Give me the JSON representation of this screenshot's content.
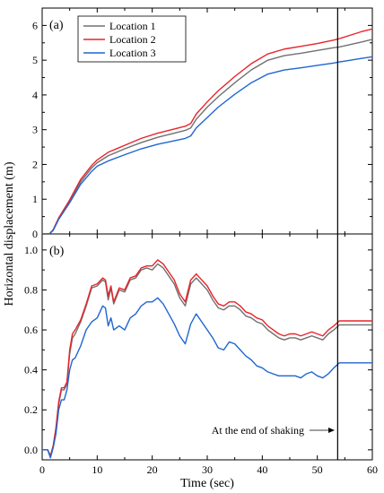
{
  "chart_data": [
    {
      "panel_label": "(a)",
      "type": "line",
      "ylim": [
        0,
        6.5
      ],
      "yticks": [
        "0",
        "1",
        "2",
        "3",
        "4",
        "5",
        "6"
      ],
      "series": [
        {
          "name": "Location 1",
          "color": "#707070",
          "points": [
            [
              0,
              0
            ],
            [
              1.3,
              0
            ],
            [
              2,
              0.12
            ],
            [
              3,
              0.45
            ],
            [
              5,
              0.95
            ],
            [
              7,
              1.5
            ],
            [
              9,
              1.9
            ],
            [
              10,
              2.05
            ],
            [
              12,
              2.25
            ],
            [
              15,
              2.45
            ],
            [
              18,
              2.63
            ],
            [
              21,
              2.78
            ],
            [
              24,
              2.9
            ],
            [
              26,
              2.98
            ],
            [
              27,
              3.05
            ],
            [
              28,
              3.3
            ],
            [
              30,
              3.65
            ],
            [
              32,
              3.95
            ],
            [
              35,
              4.35
            ],
            [
              38,
              4.72
            ],
            [
              41,
              5.0
            ],
            [
              44,
              5.13
            ],
            [
              47,
              5.2
            ],
            [
              50,
              5.28
            ],
            [
              53,
              5.36
            ],
            [
              54,
              5.38
            ],
            [
              56,
              5.45
            ],
            [
              58,
              5.52
            ],
            [
              60,
              5.6
            ]
          ]
        },
        {
          "name": "Location 2",
          "color": "#e8232a",
          "points": [
            [
              0,
              0
            ],
            [
              1.3,
              0
            ],
            [
              2,
              0.12
            ],
            [
              3,
              0.46
            ],
            [
              5,
              0.98
            ],
            [
              7,
              1.57
            ],
            [
              9,
              1.97
            ],
            [
              10,
              2.13
            ],
            [
              12,
              2.35
            ],
            [
              15,
              2.55
            ],
            [
              18,
              2.75
            ],
            [
              21,
              2.9
            ],
            [
              24,
              3.02
            ],
            [
              26,
              3.1
            ],
            [
              27,
              3.18
            ],
            [
              28,
              3.45
            ],
            [
              30,
              3.8
            ],
            [
              32,
              4.12
            ],
            [
              35,
              4.53
            ],
            [
              38,
              4.9
            ],
            [
              41,
              5.18
            ],
            [
              44,
              5.32
            ],
            [
              47,
              5.4
            ],
            [
              50,
              5.48
            ],
            [
              53,
              5.58
            ],
            [
              54,
              5.62
            ],
            [
              56,
              5.72
            ],
            [
              58,
              5.82
            ],
            [
              60,
              5.9
            ]
          ]
        },
        {
          "name": "Location 3",
          "color": "#1f66d1",
          "points": [
            [
              0,
              0
            ],
            [
              1.3,
              0
            ],
            [
              2,
              0.1
            ],
            [
              3,
              0.42
            ],
            [
              5,
              0.9
            ],
            [
              7,
              1.43
            ],
            [
              9,
              1.8
            ],
            [
              10,
              1.95
            ],
            [
              12,
              2.1
            ],
            [
              15,
              2.28
            ],
            [
              18,
              2.45
            ],
            [
              21,
              2.58
            ],
            [
              24,
              2.68
            ],
            [
              26,
              2.75
            ],
            [
              27,
              2.82
            ],
            [
              28,
              3.05
            ],
            [
              30,
              3.35
            ],
            [
              32,
              3.65
            ],
            [
              35,
              4.02
            ],
            [
              38,
              4.35
            ],
            [
              41,
              4.6
            ],
            [
              44,
              4.72
            ],
            [
              47,
              4.78
            ],
            [
              50,
              4.85
            ],
            [
              53,
              4.92
            ],
            [
              54,
              4.95
            ],
            [
              56,
              5.0
            ],
            [
              58,
              5.05
            ],
            [
              60,
              5.1
            ]
          ]
        }
      ]
    },
    {
      "panel_label": "(b)",
      "type": "line",
      "ylim": [
        -0.05,
        1.08
      ],
      "yticks": [
        "0.0",
        "0.2",
        "0.4",
        "0.6",
        "0.8",
        "1.0"
      ],
      "series": [
        {
          "name": "Location 1",
          "color": "#707070",
          "points": [
            [
              0,
              0
            ],
            [
              1,
              0
            ],
            [
              1.5,
              -0.03
            ],
            [
              2,
              0.02
            ],
            [
              2.5,
              0.1
            ],
            [
              3,
              0.23
            ],
            [
              3.5,
              0.3
            ],
            [
              4,
              0.3
            ],
            [
              4.5,
              0.33
            ],
            [
              5,
              0.48
            ],
            [
              5.5,
              0.56
            ],
            [
              6,
              0.58
            ],
            [
              7,
              0.64
            ],
            [
              8,
              0.72
            ],
            [
              9,
              0.81
            ],
            [
              10,
              0.82
            ],
            [
              11,
              0.85
            ],
            [
              11.5,
              0.84
            ],
            [
              12,
              0.75
            ],
            [
              12.5,
              0.81
            ],
            [
              13,
              0.73
            ],
            [
              14,
              0.8
            ],
            [
              15,
              0.79
            ],
            [
              16,
              0.85
            ],
            [
              17,
              0.86
            ],
            [
              18,
              0.9
            ],
            [
              19,
              0.91
            ],
            [
              20,
              0.9
            ],
            [
              21,
              0.93
            ],
            [
              22,
              0.91
            ],
            [
              23,
              0.87
            ],
            [
              24,
              0.83
            ],
            [
              25,
              0.76
            ],
            [
              26,
              0.72
            ],
            [
              27,
              0.83
            ],
            [
              28,
              0.86
            ],
            [
              29,
              0.83
            ],
            [
              30,
              0.8
            ],
            [
              31,
              0.75
            ],
            [
              32,
              0.71
            ],
            [
              33,
              0.7
            ],
            [
              34,
              0.72
            ],
            [
              35,
              0.72
            ],
            [
              36,
              0.7
            ],
            [
              37,
              0.67
            ],
            [
              38,
              0.66
            ],
            [
              39,
              0.64
            ],
            [
              40,
              0.63
            ],
            [
              41,
              0.6
            ],
            [
              42,
              0.58
            ],
            [
              43,
              0.56
            ],
            [
              44,
              0.55
            ],
            [
              45,
              0.56
            ],
            [
              46,
              0.56
            ],
            [
              47,
              0.55
            ],
            [
              48,
              0.56
            ],
            [
              49,
              0.57
            ],
            [
              50,
              0.56
            ],
            [
              51,
              0.55
            ],
            [
              52,
              0.58
            ],
            [
              53,
              0.6
            ],
            [
              54,
              0.625
            ],
            [
              60,
              0.625
            ]
          ]
        },
        {
          "name": "Location 2",
          "color": "#e8232a",
          "points": [
            [
              0,
              0
            ],
            [
              1,
              0
            ],
            [
              1.5,
              -0.03
            ],
            [
              2,
              0.02
            ],
            [
              2.5,
              0.11
            ],
            [
              3,
              0.24
            ],
            [
              3.5,
              0.31
            ],
            [
              4,
              0.31
            ],
            [
              4.5,
              0.34
            ],
            [
              5,
              0.5
            ],
            [
              5.5,
              0.58
            ],
            [
              6,
              0.6
            ],
            [
              7,
              0.65
            ],
            [
              8,
              0.73
            ],
            [
              9,
              0.82
            ],
            [
              10,
              0.83
            ],
            [
              11,
              0.86
            ],
            [
              11.5,
              0.85
            ],
            [
              12,
              0.77
            ],
            [
              12.5,
              0.82
            ],
            [
              13,
              0.74
            ],
            [
              14,
              0.81
            ],
            [
              15,
              0.8
            ],
            [
              16,
              0.86
            ],
            [
              17,
              0.87
            ],
            [
              18,
              0.91
            ],
            [
              19,
              0.92
            ],
            [
              20,
              0.92
            ],
            [
              21,
              0.95
            ],
            [
              22,
              0.93
            ],
            [
              23,
              0.89
            ],
            [
              24,
              0.85
            ],
            [
              25,
              0.78
            ],
            [
              26,
              0.74
            ],
            [
              27,
              0.85
            ],
            [
              28,
              0.88
            ],
            [
              29,
              0.85
            ],
            [
              30,
              0.82
            ],
            [
              31,
              0.77
            ],
            [
              32,
              0.73
            ],
            [
              33,
              0.72
            ],
            [
              34,
              0.74
            ],
            [
              35,
              0.74
            ],
            [
              36,
              0.72
            ],
            [
              37,
              0.69
            ],
            [
              38,
              0.68
            ],
            [
              39,
              0.66
            ],
            [
              40,
              0.65
            ],
            [
              41,
              0.62
            ],
            [
              42,
              0.6
            ],
            [
              43,
              0.58
            ],
            [
              44,
              0.57
            ],
            [
              45,
              0.58
            ],
            [
              46,
              0.58
            ],
            [
              47,
              0.57
            ],
            [
              48,
              0.58
            ],
            [
              49,
              0.59
            ],
            [
              50,
              0.58
            ],
            [
              51,
              0.57
            ],
            [
              52,
              0.6
            ],
            [
              53,
              0.62
            ],
            [
              54,
              0.645
            ],
            [
              60,
              0.645
            ]
          ]
        },
        {
          "name": "Location 3",
          "color": "#1f66d1",
          "points": [
            [
              0,
              0
            ],
            [
              1,
              0
            ],
            [
              1.5,
              -0.04
            ],
            [
              2,
              0.01
            ],
            [
              2.5,
              0.08
            ],
            [
              3,
              0.2
            ],
            [
              3.5,
              0.25
            ],
            [
              4,
              0.25
            ],
            [
              4.5,
              0.3
            ],
            [
              5,
              0.4
            ],
            [
              5.5,
              0.45
            ],
            [
              6,
              0.46
            ],
            [
              7,
              0.52
            ],
            [
              8,
              0.6
            ],
            [
              9,
              0.64
            ],
            [
              10,
              0.66
            ],
            [
              11,
              0.72
            ],
            [
              11.5,
              0.71
            ],
            [
              12,
              0.62
            ],
            [
              12.5,
              0.66
            ],
            [
              13,
              0.6
            ],
            [
              14,
              0.62
            ],
            [
              15,
              0.6
            ],
            [
              16,
              0.66
            ],
            [
              17,
              0.68
            ],
            [
              18,
              0.72
            ],
            [
              19,
              0.74
            ],
            [
              20,
              0.74
            ],
            [
              21,
              0.76
            ],
            [
              22,
              0.73
            ],
            [
              23,
              0.68
            ],
            [
              24,
              0.63
            ],
            [
              25,
              0.57
            ],
            [
              26,
              0.53
            ],
            [
              27,
              0.63
            ],
            [
              28,
              0.68
            ],
            [
              29,
              0.64
            ],
            [
              30,
              0.6
            ],
            [
              31,
              0.56
            ],
            [
              32,
              0.51
            ],
            [
              33,
              0.5
            ],
            [
              34,
              0.54
            ],
            [
              35,
              0.53
            ],
            [
              36,
              0.5
            ],
            [
              37,
              0.47
            ],
            [
              38,
              0.45
            ],
            [
              39,
              0.42
            ],
            [
              40,
              0.41
            ],
            [
              41,
              0.39
            ],
            [
              42,
              0.38
            ],
            [
              43,
              0.37
            ],
            [
              44,
              0.37
            ],
            [
              45,
              0.37
            ],
            [
              46,
              0.37
            ],
            [
              47,
              0.36
            ],
            [
              48,
              0.38
            ],
            [
              49,
              0.39
            ],
            [
              50,
              0.37
            ],
            [
              51,
              0.36
            ],
            [
              52,
              0.38
            ],
            [
              53,
              0.41
            ],
            [
              54,
              0.435
            ],
            [
              60,
              0.435
            ]
          ]
        }
      ]
    }
  ],
  "x_axis": {
    "label": "Time (sec)",
    "xlim": [
      0,
      60
    ],
    "ticks": [
      "0",
      "10",
      "20",
      "30",
      "40",
      "50",
      "60"
    ]
  },
  "y_axis_label": "Horizontal displacement (m)",
  "marker": {
    "time": 53.7,
    "annotation": "At the end of shaking"
  },
  "legend": {
    "placement": "top-left",
    "entries": [
      "Location 1",
      "Location 2",
      "Location 3"
    ]
  }
}
